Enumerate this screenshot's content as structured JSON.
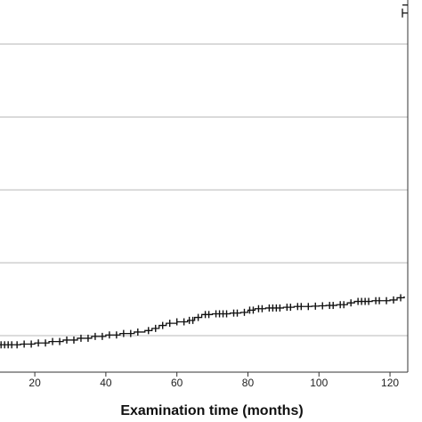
{
  "chart_data": {
    "type": "line",
    "title": "",
    "xlabel": "Examination time (months)",
    "ylabel": "",
    "x_ticks": [
      20,
      40,
      60,
      80,
      100,
      120
    ],
    "xlim": [
      10.2,
      125
    ],
    "ylim": [
      0,
      1.05
    ],
    "gridlines_y": [
      0.1,
      0.3,
      0.5,
      0.7,
      0.9
    ],
    "grid": "horizontal",
    "series": [
      {
        "values": [
          [
            10.2,
            0.075
          ],
          [
            14,
            0.075
          ],
          [
            16,
            0.077
          ],
          [
            20,
            0.08
          ],
          [
            24,
            0.084
          ],
          [
            28,
            0.088
          ],
          [
            32,
            0.093
          ],
          [
            36,
            0.098
          ],
          [
            40,
            0.102
          ],
          [
            44,
            0.106
          ],
          [
            48,
            0.11
          ],
          [
            51,
            0.114
          ],
          [
            53,
            0.12
          ],
          [
            55,
            0.128
          ],
          [
            57,
            0.134
          ],
          [
            60,
            0.138
          ],
          [
            63,
            0.142
          ],
          [
            65,
            0.15
          ],
          [
            67,
            0.158
          ],
          [
            70,
            0.16
          ],
          [
            75,
            0.162
          ],
          [
            78,
            0.164
          ],
          [
            80,
            0.17
          ],
          [
            82,
            0.174
          ],
          [
            85,
            0.176
          ],
          [
            90,
            0.178
          ],
          [
            93,
            0.18
          ],
          [
            98,
            0.181
          ],
          [
            100,
            0.182
          ],
          [
            102,
            0.183
          ],
          [
            105,
            0.185
          ],
          [
            108,
            0.19
          ],
          [
            110,
            0.194
          ],
          [
            115,
            0.196
          ],
          [
            120,
            0.198
          ],
          [
            122,
            0.204
          ],
          [
            124,
            0.208
          ]
        ],
        "upper_step": [
          [
            123.5,
            0.985
          ],
          [
            125,
            0.985
          ]
        ]
      }
    ],
    "censor_x": [
      10.5,
      11.5,
      12.5,
      13.5,
      15,
      17,
      19,
      21,
      23,
      25,
      27,
      29,
      31,
      33,
      35,
      37,
      39,
      41,
      43,
      45,
      47,
      49,
      52,
      54,
      56,
      58,
      60,
      62,
      63.5,
      64.5,
      66,
      68,
      69,
      71,
      72,
      73,
      74,
      76,
      77,
      79,
      80.5,
      81.5,
      83,
      84,
      86,
      87,
      88,
      89,
      91,
      92,
      94,
      95,
      97,
      99,
      101,
      103,
      104,
      106,
      107,
      109,
      111,
      112,
      113,
      114,
      116,
      117,
      119,
      121,
      123
    ]
  }
}
